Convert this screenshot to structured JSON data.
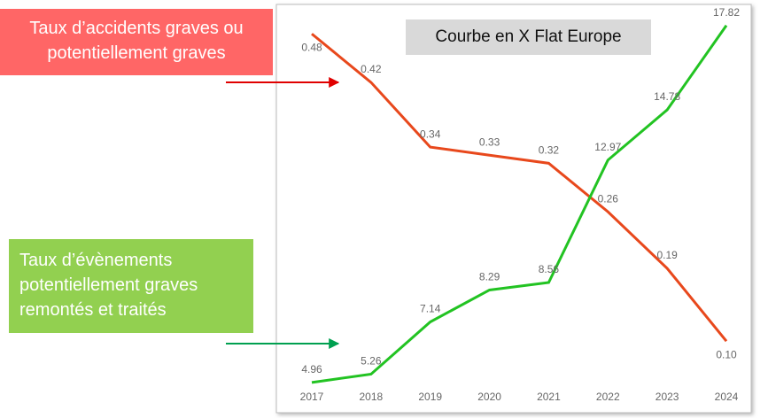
{
  "chart_data": {
    "type": "line",
    "title": "Courbe en X Flat Europe",
    "categories": [
      "2017",
      "2018",
      "2019",
      "2020",
      "2021",
      "2022",
      "2023",
      "2024"
    ],
    "series": [
      {
        "name": "Taux d’accidents graves ou potentiellement graves",
        "color": "#e8481c",
        "box_color": "#ff6666",
        "arrow_color": "#e00000",
        "values": [
          0.48,
          0.42,
          0.34,
          0.33,
          0.32,
          0.26,
          0.19,
          0.1
        ],
        "value_labels": [
          "0.48",
          "0.42",
          "0.34",
          "0.33",
          "0.32",
          "0.26",
          "0.19",
          "0.10"
        ]
      },
      {
        "name": "Taux d’évènements potentiellement graves remontés et traités",
        "color": "#22c322",
        "box_color": "#92d050",
        "arrow_color": "#00a050",
        "axis": "y2",
        "values": [
          4.96,
          5.26,
          7.14,
          8.29,
          8.56,
          12.97,
          14.78,
          17.82
        ]
      }
    ],
    "ylim": [
      0.04,
      0.5
    ],
    "y2lim": [
      4.7,
      18.1
    ],
    "grid": false
  }
}
